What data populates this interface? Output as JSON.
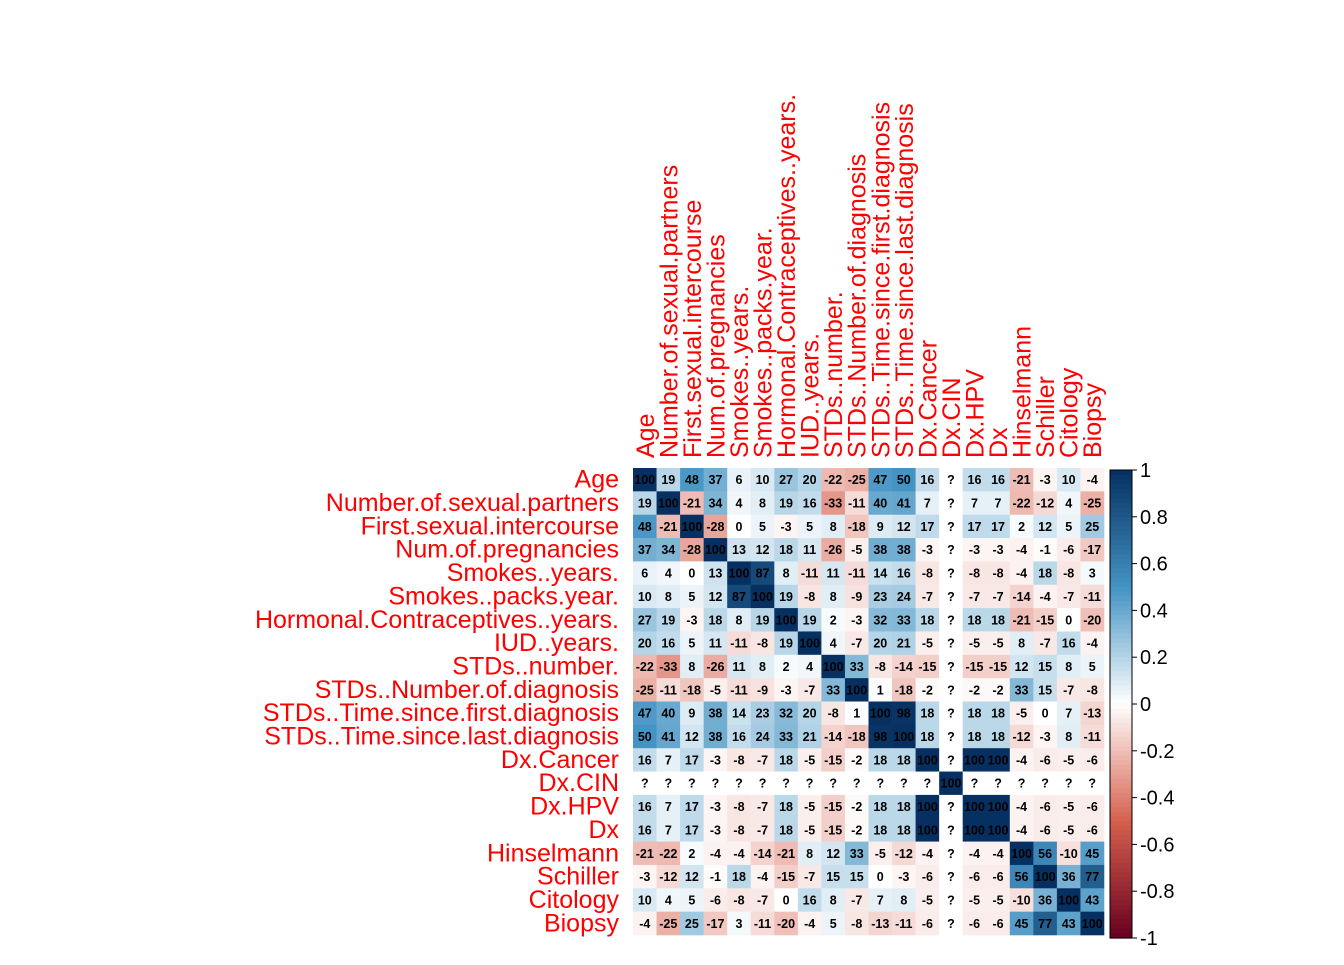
{
  "chart_data": {
    "type": "heatmap",
    "title": "",
    "variables": [
      "Age",
      "Number.of.sexual.partners",
      "First.sexual.intercourse",
      "Num.of.pregnancies",
      "Smokes..years.",
      "Smokes..packs.year.",
      "Hormonal.Contraceptives..years.",
      "IUD..years.",
      "STDs..number.",
      "STDs..Number.of.diagnosis",
      "STDs..Time.since.first.diagnosis",
      "STDs..Time.since.last.diagnosis",
      "Dx.Cancer",
      "Dx.CIN",
      "Dx.HPV",
      "Dx",
      "Hinselmann",
      "Schiller",
      "Citology",
      "Biopsy"
    ],
    "matrix": [
      [
        100,
        19,
        48,
        37,
        6,
        10,
        27,
        20,
        -22,
        -25,
        47,
        50,
        16,
        null,
        16,
        16,
        -21,
        -3,
        10,
        -4
      ],
      [
        19,
        100,
        -21,
        34,
        4,
        8,
        19,
        16,
        -33,
        -11,
        40,
        41,
        7,
        null,
        7,
        7,
        -22,
        -12,
        4,
        -25
      ],
      [
        48,
        -21,
        100,
        -28,
        0,
        5,
        -3,
        5,
        8,
        -18,
        9,
        12,
        17,
        null,
        17,
        17,
        2,
        12,
        5,
        25
      ],
      [
        37,
        34,
        -28,
        100,
        13,
        12,
        18,
        11,
        -26,
        -5,
        38,
        38,
        -3,
        null,
        -3,
        -3,
        -4,
        -1,
        -6,
        -17
      ],
      [
        6,
        4,
        0,
        13,
        100,
        87,
        8,
        -11,
        11,
        -11,
        14,
        16,
        -8,
        null,
        -8,
        -8,
        -4,
        18,
        -8,
        3
      ],
      [
        10,
        8,
        5,
        12,
        87,
        100,
        19,
        -8,
        8,
        -9,
        23,
        24,
        -7,
        null,
        -7,
        -7,
        -14,
        -4,
        -7,
        -11
      ],
      [
        27,
        19,
        -3,
        18,
        8,
        19,
        100,
        19,
        2,
        -3,
        32,
        33,
        18,
        null,
        18,
        18,
        -21,
        -15,
        0,
        -20
      ],
      [
        20,
        16,
        5,
        11,
        -11,
        -8,
        19,
        100,
        4,
        -7,
        20,
        21,
        -5,
        null,
        -5,
        -5,
        8,
        -7,
        16,
        -4
      ],
      [
        -22,
        -33,
        8,
        -26,
        11,
        8,
        2,
        4,
        100,
        33,
        -8,
        -14,
        -15,
        null,
        -15,
        -15,
        12,
        15,
        8,
        5
      ],
      [
        -25,
        -11,
        -18,
        -5,
        -11,
        -9,
        -3,
        -7,
        33,
        100,
        1,
        -18,
        -2,
        null,
        -2,
        -2,
        33,
        15,
        -7,
        -8
      ],
      [
        47,
        40,
        9,
        38,
        14,
        23,
        32,
        20,
        -8,
        1,
        100,
        98,
        18,
        null,
        18,
        18,
        -5,
        0,
        7,
        -13
      ],
      [
        50,
        41,
        12,
        38,
        16,
        24,
        33,
        21,
        -14,
        -18,
        98,
        100,
        18,
        null,
        18,
        18,
        -12,
        -3,
        8,
        -11
      ],
      [
        16,
        7,
        17,
        -3,
        -8,
        -7,
        18,
        -5,
        -15,
        -2,
        18,
        18,
        100,
        null,
        100,
        100,
        -4,
        -6,
        -5,
        -6
      ],
      [
        null,
        null,
        null,
        null,
        null,
        null,
        null,
        null,
        null,
        null,
        null,
        null,
        null,
        100,
        null,
        null,
        null,
        null,
        null,
        null
      ],
      [
        16,
        7,
        17,
        -3,
        -8,
        -7,
        18,
        -5,
        -15,
        -2,
        18,
        18,
        100,
        null,
        100,
        100,
        -4,
        -6,
        -5,
        -6
      ],
      [
        16,
        7,
        17,
        -3,
        -8,
        -7,
        18,
        -5,
        -15,
        -2,
        18,
        18,
        100,
        null,
        100,
        100,
        -4,
        -6,
        -5,
        -6
      ],
      [
        -21,
        -22,
        2,
        -4,
        -4,
        -14,
        -21,
        8,
        12,
        33,
        -5,
        -12,
        -4,
        null,
        -4,
        -4,
        100,
        56,
        -10,
        45
      ],
      [
        -3,
        -12,
        12,
        -1,
        18,
        -4,
        -15,
        -7,
        15,
        15,
        0,
        -3,
        -6,
        null,
        -6,
        -6,
        56,
        100,
        36,
        77
      ],
      [
        10,
        4,
        5,
        -6,
        -8,
        -7,
        0,
        16,
        8,
        -7,
        7,
        8,
        -5,
        null,
        -5,
        -5,
        -10,
        36,
        100,
        43
      ],
      [
        -4,
        -25,
        25,
        -17,
        3,
        -11,
        -20,
        -4,
        5,
        -8,
        -13,
        -11,
        -6,
        null,
        -6,
        -6,
        45,
        77,
        43,
        100
      ]
    ],
    "missing_label": "?",
    "colorbar": {
      "min": -1,
      "max": 1,
      "ticks": [
        "1",
        "0.8",
        "0.6",
        "0.4",
        "0.2",
        "0",
        "-0.2",
        "-0.4",
        "-0.6",
        "-0.8",
        "-1"
      ]
    },
    "label_color": "#ff0000",
    "colors": {
      "negative_end": "#67001f",
      "negative_mid": "#d6604d",
      "neutral": "#ffffff",
      "positive_mid": "#4393c3",
      "positive_end": "#053061"
    }
  }
}
